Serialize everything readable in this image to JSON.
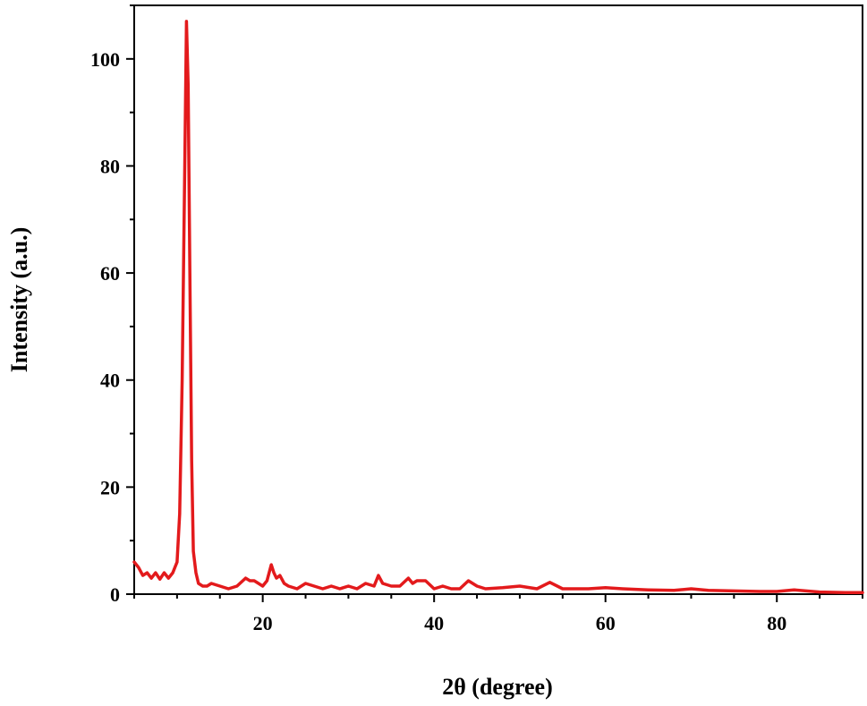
{
  "chart_data": {
    "type": "line",
    "xlabel": "2θ (degree)",
    "ylabel": "Intensity (a.u.)",
    "xlim": [
      5,
      90
    ],
    "ylim": [
      0,
      110
    ],
    "x_ticks": [
      20,
      40,
      60,
      80
    ],
    "y_ticks": [
      0,
      20,
      40,
      60,
      80,
      100
    ],
    "x_minor_step": 5,
    "y_minor_step": 10,
    "grid": false,
    "series": [
      {
        "color": "#e31a1c",
        "x": [
          5,
          5.5,
          6,
          6.5,
          7,
          7.5,
          8,
          8.5,
          9,
          9.5,
          10,
          10.3,
          10.6,
          10.9,
          11.1,
          11.3,
          11.5,
          11.7,
          11.9,
          12.2,
          12.5,
          13,
          13.5,
          14,
          15,
          16,
          17,
          18,
          18.5,
          19,
          19.5,
          20,
          20.5,
          21,
          21.3,
          21.6,
          22,
          22.5,
          23,
          24,
          25,
          26,
          27,
          28,
          29,
          30,
          31,
          32,
          33,
          33.5,
          34,
          35,
          36,
          37,
          37.5,
          38,
          39,
          40,
          41,
          42,
          43,
          44,
          45,
          46,
          48,
          50,
          52,
          53.5,
          55,
          58,
          60,
          62,
          65,
          68,
          70,
          72,
          75,
          78,
          80,
          82,
          85,
          88,
          90
        ],
        "y": [
          6,
          5,
          3.5,
          4,
          3,
          4,
          2.8,
          4,
          3,
          4,
          6,
          15,
          40,
          80,
          107,
          95,
          60,
          25,
          8,
          4,
          2,
          1.5,
          1.5,
          2,
          1.5,
          1,
          1.5,
          3,
          2.5,
          2.5,
          2,
          1.5,
          2.5,
          5.5,
          4,
          3,
          3.5,
          2,
          1.5,
          1,
          2,
          1.5,
          1,
          1.5,
          1,
          1.5,
          1,
          2,
          1.5,
          3.5,
          2,
          1.5,
          1.5,
          3,
          2,
          2.5,
          2.5,
          1,
          1.5,
          1,
          1,
          2.5,
          1.5,
          1,
          1.2,
          1.5,
          1,
          2.2,
          1,
          1,
          1.2,
          1,
          0.8,
          0.7,
          1,
          0.7,
          0.6,
          0.5,
          0.5,
          0.8,
          0.4,
          0.3,
          0.3
        ]
      }
    ]
  }
}
